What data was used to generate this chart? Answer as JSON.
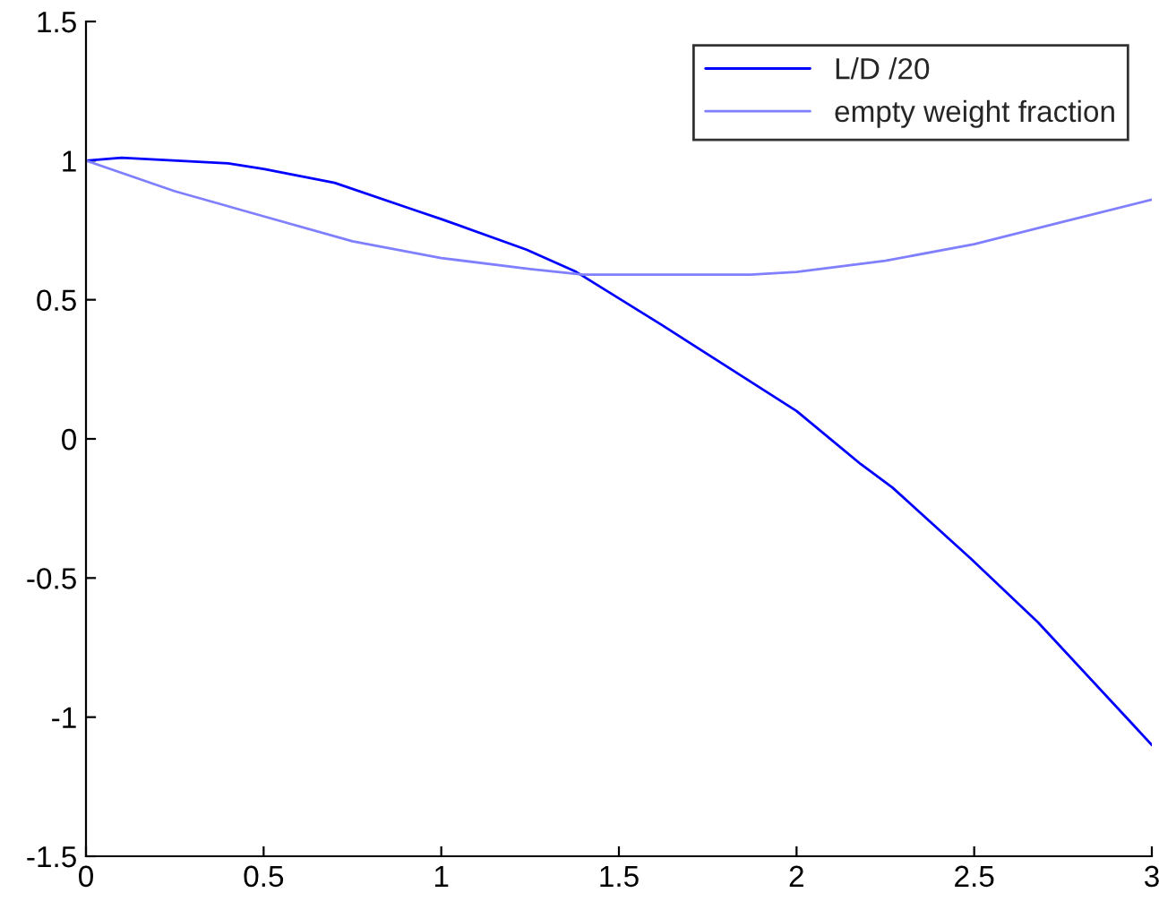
{
  "chart_data": {
    "type": "line",
    "xlim": [
      0,
      3
    ],
    "ylim": [
      -1.5,
      1.5
    ],
    "xticks": [
      0,
      0.5,
      1,
      1.5,
      2,
      2.5,
      3
    ],
    "yticks": [
      -1.5,
      -1,
      -0.5,
      0,
      0.5,
      1,
      1.5
    ],
    "grid": false,
    "legend": "top right",
    "series": [
      {
        "name": "L/D /20",
        "color": "#0000ff",
        "x": [
          0,
          0.1,
          0.4,
          0.5,
          0.7,
          0.93,
          1,
          1.24,
          1.38,
          1.62,
          2,
          2.18,
          2.27,
          2.49,
          2.68,
          3
        ],
        "values": [
          1,
          1.01,
          0.99,
          0.97,
          0.92,
          0.82,
          0.79,
          0.68,
          0.6,
          0.41,
          0.1,
          -0.09,
          -0.175,
          -0.43,
          -0.66,
          -1.1
        ]
      },
      {
        "name": "empty weight fraction",
        "color": "#8080ff",
        "x": [
          0,
          0.25,
          0.5,
          0.75,
          1,
          1.25,
          1.4,
          1.5,
          1.87,
          2,
          2.25,
          2.5,
          2.75,
          3
        ],
        "values": [
          1,
          0.89,
          0.8,
          0.71,
          0.65,
          0.61,
          0.59,
          0.59,
          0.59,
          0.6,
          0.64,
          0.7,
          0.78,
          0.86
        ]
      }
    ]
  }
}
